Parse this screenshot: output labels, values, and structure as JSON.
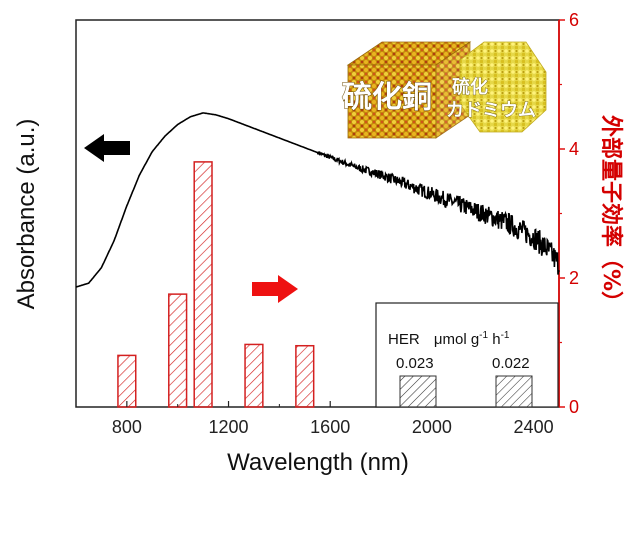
{
  "chart_data": {
    "type": "bar+line",
    "title": "",
    "xlabel": "Wavelength (nm)",
    "ylabel_left": "Absorbance (a.u.)",
    "ylabel_right": "外部量子効率（%）",
    "xlim": [
      600,
      2500
    ],
    "ylim_right": [
      0,
      6
    ],
    "xticks": [
      800,
      1200,
      1600,
      2000,
      2400
    ],
    "yticks_right": [
      0,
      2,
      4,
      6
    ],
    "xtick_labels": [
      "800",
      "1200",
      "1600",
      "2000",
      "2400"
    ],
    "ytick_labels_right": [
      "0",
      "2",
      "4",
      "6"
    ],
    "bars": {
      "name": "External quantum efficiency",
      "color": "#d42020",
      "hatch": true,
      "bar_width_nm": 70,
      "x": [
        800,
        1000,
        1100,
        1300,
        1500
      ],
      "values": [
        0.8,
        1.75,
        3.8,
        0.97,
        0.95
      ]
    },
    "absorbance": {
      "name": "Absorbance",
      "color": "#000000",
      "noisy_from_nm": 1550,
      "x": [
        600,
        650,
        700,
        750,
        800,
        850,
        900,
        950,
        1000,
        1050,
        1100,
        1150,
        1200,
        1300,
        1400,
        1500,
        1600,
        1700,
        1800,
        1900,
        2000,
        2100,
        2200,
        2300,
        2400,
        2450,
        2500
      ],
      "y": [
        0.31,
        0.32,
        0.36,
        0.43,
        0.52,
        0.6,
        0.66,
        0.7,
        0.73,
        0.75,
        0.76,
        0.755,
        0.745,
        0.72,
        0.695,
        0.67,
        0.645,
        0.62,
        0.6,
        0.575,
        0.55,
        0.525,
        0.5,
        0.475,
        0.44,
        0.41,
        0.37
      ]
    },
    "arrows": {
      "left_color": "#000000",
      "right_color": "#ee1111"
    },
    "inset": {
      "title": "HER",
      "unit_prefix": "μmol g",
      "unit_exp1": "-1",
      "unit_mid": " h",
      "unit_exp2": "-1",
      "values": [
        "0.023",
        "0.022"
      ]
    },
    "crystal": {
      "label_big": "硫化銅",
      "label_small_line1": "硫化",
      "label_small_line2": "カドミウム",
      "color_main": "#c89a10",
      "color_second": "#e8dc3a"
    }
  }
}
